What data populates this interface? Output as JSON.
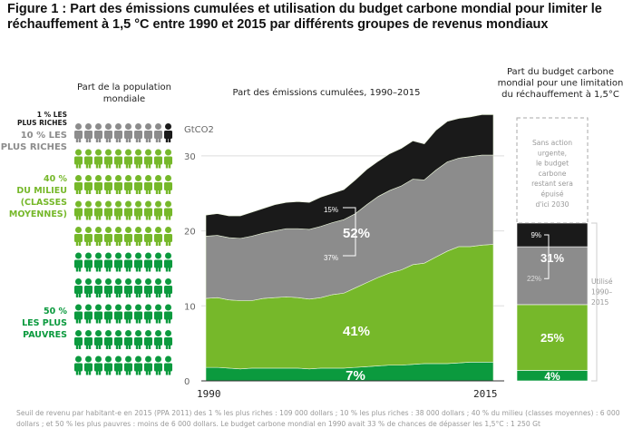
{
  "title": "Figure 1 : Part des émissions cumulées et utilisation du budget carbone mondial pour limiter le réchauffement à 1,5 °C entre 1990 et 2015 par différents groupes de revenus mondiaux",
  "population_panel": {
    "header": [
      "Part de la population",
      "mondiale"
    ],
    "groups": [
      {
        "label": [
          "1 % LES",
          "PLUS RICHES"
        ],
        "color": "#1a1a1a",
        "people": 1
      },
      {
        "label": [
          "10 % LES",
          "PLUS RICHES"
        ],
        "color": "#8c8c8c",
        "people": 9
      },
      {
        "label": [
          "40 %",
          "DU MILIEU",
          "(CLASSES",
          "MOYENNES)"
        ],
        "color": "#76b82a",
        "people": 40
      },
      {
        "label": [
          "50 %",
          "LES PLUS",
          "PAUVRES"
        ],
        "color": "#0b9a3e",
        "people": 50
      }
    ]
  },
  "chart_data": [
    {
      "type": "area",
      "title": "Part des émissions cumulées, 1990–2015",
      "ylabel": "GtCO2",
      "ylim": [
        0,
        36
      ],
      "yticks": [
        "0",
        "10",
        "20",
        "30"
      ],
      "xticks": [
        "1990",
        "2015"
      ],
      "grid": true,
      "stacked": true,
      "values_are_cumulative_tops": true,
      "x": [
        1990,
        1991,
        1992,
        1993,
        1994,
        1995,
        1996,
        1997,
        1998,
        1999,
        2000,
        2001,
        2002,
        2003,
        2004,
        2005,
        2006,
        2007,
        2008,
        2009,
        2010,
        2011,
        2012,
        2013,
        2014,
        2015
      ],
      "series": [
        {
          "name": "50 % les plus pauvres",
          "color": "#0b9a3e",
          "label": "7%",
          "values": [
            1.8,
            1.8,
            1.7,
            1.6,
            1.7,
            1.7,
            1.7,
            1.7,
            1.7,
            1.6,
            1.7,
            1.7,
            1.7,
            1.8,
            1.9,
            2.0,
            2.1,
            2.1,
            2.2,
            2.3,
            2.3,
            2.3,
            2.4,
            2.5,
            2.5,
            2.5
          ]
        },
        {
          "name": "40 % du milieu",
          "color": "#76b82a",
          "label": "41%",
          "values": [
            11.0,
            11.1,
            10.8,
            10.7,
            10.7,
            11.0,
            11.1,
            11.2,
            11.1,
            10.9,
            11.1,
            11.5,
            11.7,
            12.4,
            13.1,
            13.8,
            14.4,
            14.8,
            15.5,
            15.7,
            16.5,
            17.3,
            17.9,
            17.9,
            18.1,
            18.2
          ]
        },
        {
          "name": "10 % les plus riches (hors 1 %)",
          "color": "#8c8c8c",
          "label": "37%",
          "values": [
            19.3,
            19.4,
            19.1,
            19.0,
            19.3,
            19.7,
            20.0,
            20.3,
            20.3,
            20.2,
            20.6,
            21.1,
            21.5,
            22.3,
            23.5,
            24.6,
            25.4,
            26.0,
            26.9,
            26.8,
            28.1,
            29.2,
            29.7,
            29.9,
            30.1,
            30.1
          ]
        },
        {
          "name": "1 % les plus riches",
          "color": "#1a1a1a",
          "label": "15%",
          "values": [
            22.1,
            22.3,
            22.0,
            22.0,
            22.5,
            23.0,
            23.5,
            23.8,
            23.9,
            23.8,
            24.5,
            25.0,
            25.5,
            26.8,
            28.2,
            29.3,
            30.3,
            31.0,
            32.0,
            31.6,
            33.4,
            34.6,
            35.0,
            35.2,
            35.5,
            35.5
          ]
        }
      ],
      "bracket_total": "52%"
    },
    {
      "type": "bar",
      "title": [
        "Part du budget carbone",
        "mondial pour une limitation",
        "du réchauffement à 1,5°C"
      ],
      "segments": [
        {
          "name": "50 % les plus pauvres",
          "value": 4,
          "label": "4%",
          "color": "#0b9a3e"
        },
        {
          "name": "40 % du milieu",
          "value": 25,
          "label": "25%",
          "color": "#76b82a"
        },
        {
          "name": "10 % les plus riches (hors 1 %)",
          "value": 22,
          "label": "22%",
          "color": "#8c8c8c"
        },
        {
          "name": "1 % les plus riches",
          "value": 9,
          "label": "9%",
          "color": "#1a1a1a"
        }
      ],
      "remaining_value": 40,
      "bracket_total": "31%",
      "remaining_note": [
        "Sans action",
        "urgente,",
        "le budget",
        "carbone",
        "restant sera",
        "épuisé",
        "d'ici 2030"
      ],
      "used_label": [
        "Utilisé",
        "1990–",
        "2015"
      ]
    }
  ],
  "footer": "Seuil de revenu par habitant-e en 2015 (PPA 2011) des 1 % les plus riches : 109 000 dollars ; 10 % les plus riches : 38 000 dollars ; 40 % du milieu (classes moyennes) : 6 000 dollars ; et 50 % les plus pauvres : moins de 6 000 dollars. Le budget carbone mondial en 1990 avait 33 % de chances de dépasser les 1,5°C : 1 250 Gt"
}
